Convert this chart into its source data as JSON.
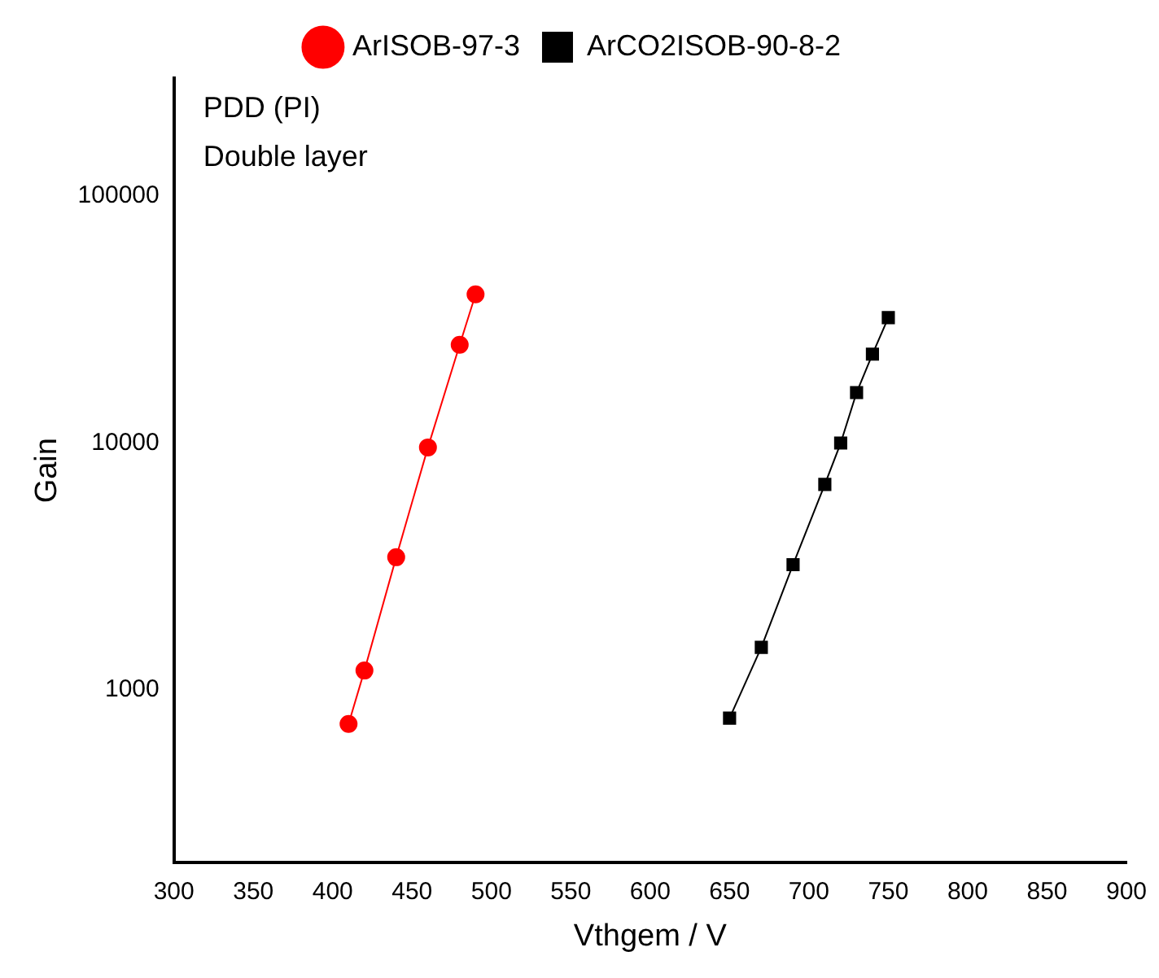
{
  "chart_data": {
    "type": "line",
    "xlabel": "Vthgem / V",
    "ylabel": "Gain",
    "annotations": [
      "PDD (PI)",
      "Double layer"
    ],
    "xlim": [
      300,
      900
    ],
    "xticks": [
      300,
      350,
      400,
      450,
      500,
      550,
      600,
      650,
      700,
      750,
      800,
      850,
      900
    ],
    "ylim": [
      200,
      300000
    ],
    "yticks": [
      1000,
      10000,
      100000
    ],
    "log": "y",
    "grid": false,
    "legend": "top",
    "line_style": "solid",
    "series": [
      {
        "name": "ArISOB-97-3",
        "color": "#ff0000",
        "marker": "circle",
        "x": [
          410,
          420,
          440,
          460,
          480,
          490
        ],
        "values": [
          730,
          1200,
          3450,
          9600,
          25000,
          40000
        ]
      },
      {
        "name": "ArCO2ISOB-90-8-2",
        "color": "#000000",
        "marker": "square",
        "x": [
          650,
          670,
          690,
          710,
          720,
          730,
          740,
          750
        ],
        "values": [
          770,
          1490,
          3220,
          6800,
          10000,
          16000,
          22900,
          32200
        ]
      }
    ]
  }
}
